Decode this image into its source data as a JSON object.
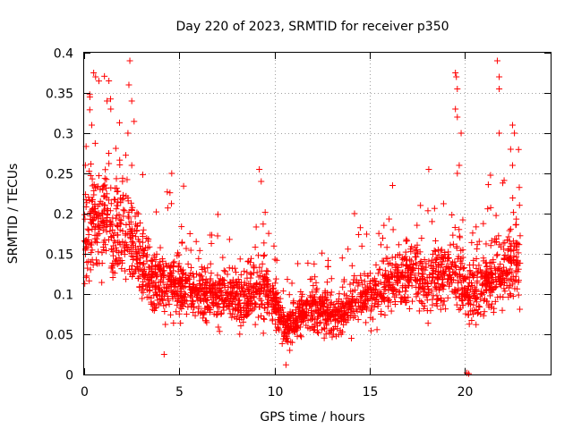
{
  "chart_data": {
    "type": "scatter",
    "title": "Day 220 of 2023, SRMTID for receiver p350",
    "xlabel": "GPS time / hours",
    "ylabel": "SRMTID / TECUs",
    "xlim": [
      0,
      24.5
    ],
    "ylim": [
      0,
      0.4
    ],
    "xticks": [
      0,
      5,
      10,
      15,
      20
    ],
    "xtick_labels": [
      "0",
      "5",
      "10",
      "15",
      "20"
    ],
    "yticks": [
      0,
      0.05,
      0.1,
      0.15,
      0.2,
      0.25,
      0.3,
      0.35,
      0.4
    ],
    "ytick_labels": [
      "0",
      "0.05",
      "0.1",
      "0.15",
      "0.2",
      "0.25",
      "0.3",
      "0.35",
      "0.4"
    ],
    "grid": true,
    "marker": "+",
    "color": "#ff0000",
    "trend": [
      [
        0.0,
        0.17
      ],
      [
        0.5,
        0.19
      ],
      [
        1.0,
        0.2
      ],
      [
        1.5,
        0.18
      ],
      [
        2.0,
        0.19
      ],
      [
        2.5,
        0.16
      ],
      [
        3.0,
        0.14
      ],
      [
        3.5,
        0.12
      ],
      [
        4.0,
        0.115
      ],
      [
        4.5,
        0.11
      ],
      [
        5.0,
        0.11
      ],
      [
        6.0,
        0.105
      ],
      [
        7.0,
        0.1
      ],
      [
        8.0,
        0.095
      ],
      [
        9.0,
        0.1
      ],
      [
        9.5,
        0.11
      ],
      [
        10.0,
        0.09
      ],
      [
        10.5,
        0.06
      ],
      [
        11.0,
        0.06
      ],
      [
        11.5,
        0.08
      ],
      [
        12.0,
        0.085
      ],
      [
        12.5,
        0.08
      ],
      [
        13.0,
        0.07
      ],
      [
        13.5,
        0.075
      ],
      [
        14.0,
        0.09
      ],
      [
        14.5,
        0.1
      ],
      [
        15.0,
        0.1
      ],
      [
        16.0,
        0.11
      ],
      [
        16.5,
        0.12
      ],
      [
        17.0,
        0.13
      ],
      [
        17.5,
        0.12
      ],
      [
        18.0,
        0.11
      ],
      [
        18.5,
        0.12
      ],
      [
        19.0,
        0.12
      ],
      [
        19.5,
        0.13
      ],
      [
        20.0,
        0.11
      ],
      [
        20.5,
        0.1
      ],
      [
        21.0,
        0.11
      ],
      [
        21.5,
        0.12
      ],
      [
        22.0,
        0.13
      ],
      [
        22.5,
        0.14
      ],
      [
        22.9,
        0.14
      ]
    ],
    "spikes": [
      [
        0.3,
        0.345
      ],
      [
        0.5,
        0.375
      ],
      [
        0.6,
        0.37
      ],
      [
        1.3,
        0.365
      ],
      [
        1.2,
        0.34
      ],
      [
        1.4,
        0.33
      ],
      [
        2.4,
        0.39
      ],
      [
        2.35,
        0.36
      ],
      [
        2.5,
        0.34
      ],
      [
        2.3,
        0.3
      ],
      [
        0.4,
        0.31
      ],
      [
        2.5,
        0.26
      ],
      [
        4.6,
        0.25
      ],
      [
        9.2,
        0.255
      ],
      [
        9.3,
        0.24
      ],
      [
        14.2,
        0.2
      ],
      [
        16.2,
        0.235
      ],
      [
        18.1,
        0.255
      ],
      [
        19.5,
        0.375
      ],
      [
        19.55,
        0.37
      ],
      [
        19.6,
        0.355
      ],
      [
        19.5,
        0.33
      ],
      [
        19.6,
        0.32
      ],
      [
        19.8,
        0.3
      ],
      [
        19.7,
        0.26
      ],
      [
        19.6,
        0.25
      ],
      [
        21.7,
        0.39
      ],
      [
        21.8,
        0.37
      ],
      [
        21.8,
        0.355
      ],
      [
        22.5,
        0.31
      ],
      [
        22.6,
        0.3
      ],
      [
        22.4,
        0.28
      ],
      [
        22.5,
        0.26
      ],
      [
        21.8,
        0.3
      ],
      [
        10.6,
        0.012
      ],
      [
        20.1,
        0.002
      ],
      [
        20.2,
        0.001
      ],
      [
        10.8,
        0.03
      ],
      [
        4.2,
        0.025
      ]
    ]
  }
}
